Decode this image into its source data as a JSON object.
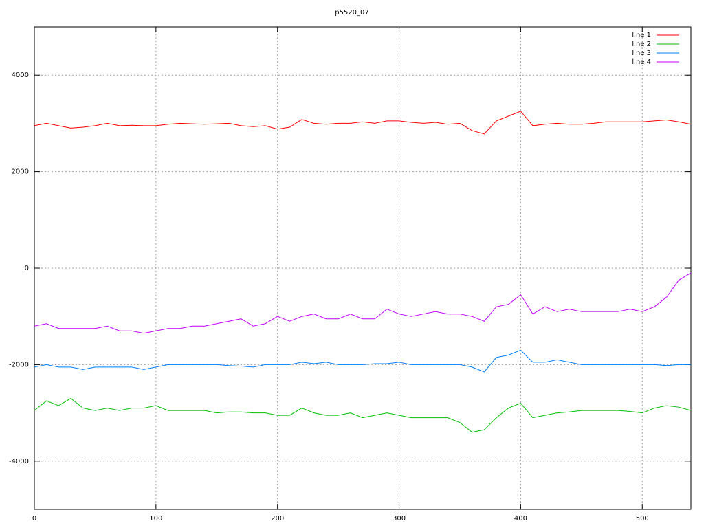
{
  "chart_data": {
    "type": "line",
    "title": "p5520_07",
    "x": [
      0,
      10,
      20,
      30,
      40,
      50,
      60,
      70,
      80,
      90,
      100,
      110,
      120,
      130,
      140,
      150,
      160,
      170,
      180,
      190,
      200,
      210,
      220,
      230,
      240,
      250,
      260,
      270,
      280,
      290,
      300,
      310,
      320,
      330,
      340,
      350,
      360,
      370,
      380,
      390,
      400,
      410,
      420,
      430,
      440,
      450,
      460,
      470,
      480,
      490,
      500,
      510,
      520,
      530,
      540
    ],
    "series": [
      {
        "name": "line 1",
        "color": "#ff0000",
        "values": [
          2950,
          3000,
          2950,
          2900,
          2920,
          2950,
          3000,
          2950,
          2960,
          2950,
          2950,
          2980,
          3000,
          2990,
          2980,
          2990,
          3000,
          2950,
          2930,
          2950,
          2880,
          2920,
          3080,
          3000,
          2980,
          3000,
          3000,
          3030,
          3000,
          3050,
          3050,
          3020,
          3000,
          3020,
          2980,
          3000,
          2850,
          2780,
          3050,
          3150,
          3250,
          2950,
          2980,
          3000,
          2980,
          2980,
          3000,
          3030,
          3030,
          3030,
          3030,
          3050,
          3070,
          3030,
          2980
        ]
      },
      {
        "name": "line 2",
        "color": "#00c000",
        "values": [
          -2950,
          -2750,
          -2850,
          -2700,
          -2900,
          -2950,
          -2900,
          -2950,
          -2900,
          -2900,
          -2850,
          -2950,
          -2950,
          -2950,
          -2950,
          -3000,
          -2980,
          -2980,
          -3000,
          -3000,
          -3050,
          -3050,
          -2900,
          -3000,
          -3050,
          -3050,
          -3000,
          -3100,
          -3050,
          -3000,
          -3050,
          -3100,
          -3100,
          -3100,
          -3100,
          -3200,
          -3400,
          -3350,
          -3100,
          -2900,
          -2800,
          -3100,
          -3050,
          -3000,
          -2980,
          -2950,
          -2950,
          -2950,
          -2950,
          -2970,
          -3000,
          -2900,
          -2850,
          -2880,
          -2950
        ]
      },
      {
        "name": "line 3",
        "color": "#0080ff",
        "values": [
          -2050,
          -2000,
          -2050,
          -2050,
          -2100,
          -2050,
          -2050,
          -2050,
          -2050,
          -2100,
          -2050,
          -2000,
          -2000,
          -2000,
          -2000,
          -2000,
          -2020,
          -2030,
          -2050,
          -2000,
          -2000,
          -2000,
          -1950,
          -1980,
          -1950,
          -2000,
          -2000,
          -2000,
          -1980,
          -1980,
          -1950,
          -2000,
          -2000,
          -2000,
          -2000,
          -2000,
          -2050,
          -2150,
          -1850,
          -1800,
          -1700,
          -1950,
          -1950,
          -1900,
          -1950,
          -2000,
          -2000,
          -2000,
          -2000,
          -2000,
          -2000,
          -2000,
          -2020,
          -2000,
          -2000
        ]
      },
      {
        "name": "line 4",
        "color": "#c000ff",
        "values": [
          -1200,
          -1150,
          -1250,
          -1250,
          -1250,
          -1250,
          -1200,
          -1300,
          -1300,
          -1350,
          -1300,
          -1250,
          -1250,
          -1200,
          -1200,
          -1150,
          -1100,
          -1050,
          -1200,
          -1150,
          -1000,
          -1100,
          -1000,
          -950,
          -1050,
          -1050,
          -950,
          -1050,
          -1050,
          -850,
          -950,
          -1000,
          -950,
          -900,
          -950,
          -950,
          -1000,
          -1100,
          -800,
          -750,
          -550,
          -950,
          -800,
          -900,
          -850,
          -900,
          -900,
          -900,
          -900,
          -850,
          -900,
          -800,
          -600,
          -250,
          -100
        ]
      }
    ],
    "xlim": [
      0,
      540
    ],
    "xticks": [
      0,
      100,
      200,
      300,
      400,
      500
    ],
    "ylim": [
      -5000,
      5000
    ],
    "yticks": [
      -4000,
      -2000,
      0,
      2000,
      4000
    ],
    "grid": true,
    "legend": "top-right"
  }
}
